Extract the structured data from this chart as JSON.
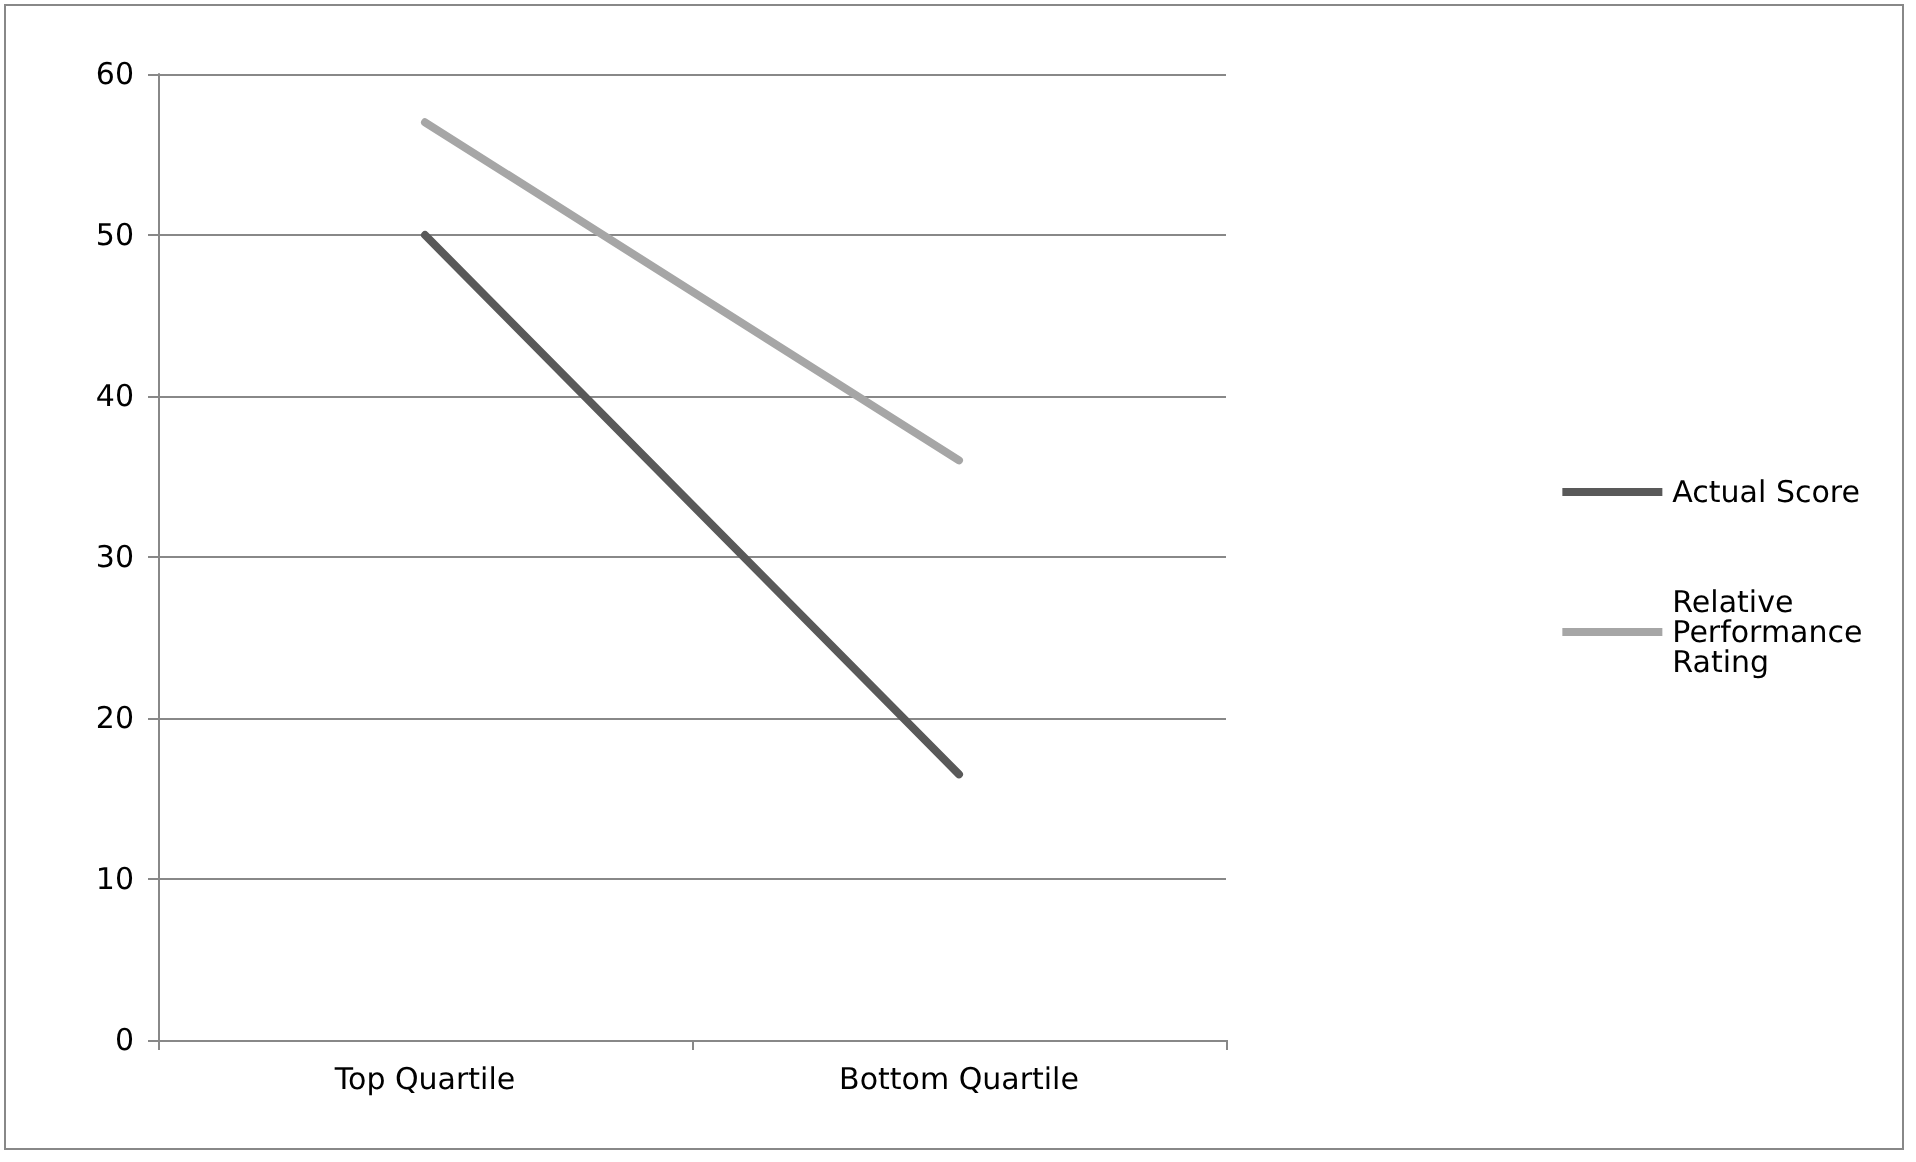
{
  "chart_data": {
    "type": "line",
    "categories": [
      "Top Quartile",
      "Bottom Quartile"
    ],
    "series": [
      {
        "name": "Actual Score",
        "color": "#595959",
        "values": [
          50,
          16.5
        ]
      },
      {
        "name": "Relative Performance Rating",
        "color": "#a6a6a6",
        "values": [
          57,
          36
        ]
      }
    ],
    "ylim": [
      0,
      60
    ],
    "yticks": [
      0,
      10,
      20,
      30,
      40,
      50,
      60
    ],
    "grid": "y",
    "legend": "right",
    "marker": "none",
    "line_style": "solid"
  }
}
